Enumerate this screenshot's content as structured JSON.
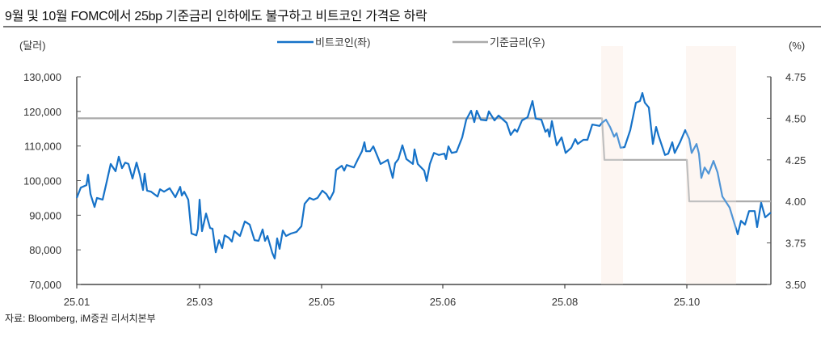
{
  "title": "9월 및 10월 FOMC에서 25bp 기준금리 인하에도 불구하고 비트코인 가격은 하락",
  "source": "자료: Bloomberg, iM증권 리서치본부",
  "colors": {
    "bitcoin": "#1672c8",
    "rate": "#aaaaaa",
    "band": "#fdf3ee",
    "axis": "#555555"
  },
  "chart_data": {
    "type": "line",
    "title": "9월 및 10월 FOMC에서 25bp 기준금리 인하에도 불구하고 비트코인 가격은 하락",
    "left_unit": "(달러)",
    "right_unit": "(%)",
    "left_ylim": [
      70000,
      130000
    ],
    "right_ylim": [
      3.5,
      4.75
    ],
    "left_ticks": [
      "70,000",
      "80,000",
      "90,000",
      "100,000",
      "110,000",
      "120,000",
      "130,000"
    ],
    "left_tick_values": [
      70000,
      80000,
      90000,
      100000,
      110000,
      120000,
      130000
    ],
    "right_ticks": [
      "3.50",
      "3.75",
      "4.00",
      "4.25",
      "4.50",
      "4.75"
    ],
    "right_tick_values": [
      3.5,
      3.75,
      4.0,
      4.25,
      4.5,
      4.75
    ],
    "x_range": [
      0,
      343.6
    ],
    "x_ticks": [
      {
        "label": "25.01",
        "x": 0
      },
      {
        "label": "25.03",
        "x": 60.8
      },
      {
        "label": "25.05",
        "x": 121.2
      },
      {
        "label": "25.06",
        "x": 181.2
      },
      {
        "label": "25.08",
        "x": 241.6
      },
      {
        "label": "25.10",
        "x": 302
      }
    ],
    "fomc_periods": [
      [
        259.6,
        270.4
      ],
      [
        301.6,
        326.4
      ]
    ],
    "legend": {
      "placement": "top-center",
      "items": [
        "비트코인(좌)",
        "기준금리(우)"
      ]
    },
    "series": [
      {
        "name": "비트코인(좌)",
        "axis": "left",
        "points": [
          [
            0,
            95000
          ],
          [
            2,
            98000
          ],
          [
            4.8,
            98700
          ],
          [
            5.6,
            101700
          ],
          [
            6.8,
            96100
          ],
          [
            8.8,
            92400
          ],
          [
            10,
            95000
          ],
          [
            12.8,
            94500
          ],
          [
            14.8,
            99600
          ],
          [
            16.8,
            104800
          ],
          [
            19.2,
            102700
          ],
          [
            20.8,
            106900
          ],
          [
            22.4,
            103600
          ],
          [
            24,
            105200
          ],
          [
            25.6,
            104800
          ],
          [
            27.6,
            100600
          ],
          [
            29.6,
            105200
          ],
          [
            31.2,
            101700
          ],
          [
            32.8,
            97300
          ],
          [
            33.6,
            102000
          ],
          [
            34.8,
            97100
          ],
          [
            36.8,
            96800
          ],
          [
            40,
            95400
          ],
          [
            41.2,
            97500
          ],
          [
            43.2,
            96800
          ],
          [
            46,
            97800
          ],
          [
            48.8,
            95200
          ],
          [
            51.2,
            98200
          ],
          [
            52,
            95700
          ],
          [
            53.2,
            96800
          ],
          [
            55.2,
            94500
          ],
          [
            56.8,
            84700
          ],
          [
            59.2,
            84200
          ],
          [
            60,
            86100
          ],
          [
            60.8,
            94500
          ],
          [
            62,
            85400
          ],
          [
            64,
            90500
          ],
          [
            66,
            86300
          ],
          [
            67.2,
            86100
          ],
          [
            68.8,
            79300
          ],
          [
            70.4,
            82800
          ],
          [
            72,
            80500
          ],
          [
            73.2,
            84200
          ],
          [
            75.2,
            83500
          ],
          [
            76.8,
            82400
          ],
          [
            78,
            85400
          ],
          [
            80.8,
            84000
          ],
          [
            83.2,
            88200
          ],
          [
            85.6,
            87300
          ],
          [
            88,
            82800
          ],
          [
            90,
            82600
          ],
          [
            92,
            85900
          ],
          [
            93.2,
            82600
          ],
          [
            94.4,
            84000
          ],
          [
            96.8,
            79100
          ],
          [
            98,
            77500
          ],
          [
            99.2,
            83300
          ],
          [
            100.4,
            80300
          ],
          [
            102,
            85600
          ],
          [
            103.6,
            84000
          ],
          [
            106,
            84700
          ],
          [
            108.8,
            85200
          ],
          [
            111.2,
            86800
          ],
          [
            112.8,
            93300
          ],
          [
            115.2,
            95000
          ],
          [
            117.2,
            94500
          ],
          [
            119.2,
            95000
          ],
          [
            121.6,
            97100
          ],
          [
            123.6,
            96100
          ],
          [
            125.2,
            94500
          ],
          [
            127.2,
            96800
          ],
          [
            128.4,
            103100
          ],
          [
            131.2,
            104300
          ],
          [
            132.4,
            102900
          ],
          [
            133.6,
            104500
          ],
          [
            137.2,
            103800
          ],
          [
            139.2,
            106200
          ],
          [
            141.2,
            108500
          ],
          [
            142.4,
            111100
          ],
          [
            143.2,
            108500
          ],
          [
            145.2,
            108500
          ],
          [
            146.8,
            109900
          ],
          [
            148.8,
            107100
          ],
          [
            150.4,
            104800
          ],
          [
            154,
            106000
          ],
          [
            156.4,
            100800
          ],
          [
            157.6,
            105000
          ],
          [
            159.2,
            106200
          ],
          [
            161.2,
            110200
          ],
          [
            163.2,
            106200
          ],
          [
            166.4,
            104800
          ],
          [
            167.2,
            109000
          ],
          [
            168.8,
            104800
          ],
          [
            172,
            102900
          ],
          [
            173.2,
            99900
          ],
          [
            174.8,
            104800
          ],
          [
            176.8,
            108000
          ],
          [
            179.2,
            107400
          ],
          [
            182,
            107800
          ],
          [
            182.8,
            106200
          ],
          [
            184,
            109900
          ],
          [
            185.6,
            108000
          ],
          [
            188,
            108300
          ],
          [
            190.8,
            112500
          ],
          [
            192.8,
            117600
          ],
          [
            195.2,
            120200
          ],
          [
            196.8,
            116900
          ],
          [
            198,
            120200
          ],
          [
            200,
            117600
          ],
          [
            202.8,
            117400
          ],
          [
            204,
            120000
          ],
          [
            206.8,
            117400
          ],
          [
            208.8,
            118800
          ],
          [
            212.8,
            116700
          ],
          [
            214.8,
            113200
          ],
          [
            216.8,
            114800
          ],
          [
            218,
            114100
          ],
          [
            220.4,
            117400
          ],
          [
            223.2,
            118300
          ],
          [
            225.6,
            123000
          ],
          [
            227.2,
            117900
          ],
          [
            230,
            117600
          ],
          [
            232,
            114100
          ],
          [
            233.2,
            114800
          ],
          [
            234,
            112700
          ],
          [
            235.2,
            117200
          ],
          [
            237.6,
            110200
          ],
          [
            240,
            112500
          ],
          [
            242,
            108000
          ],
          [
            244.8,
            109500
          ],
          [
            246.8,
            112000
          ],
          [
            248,
            110600
          ],
          [
            250.8,
            111800
          ],
          [
            252.8,
            111800
          ],
          [
            255.2,
            116200
          ],
          [
            258.8,
            115800
          ],
          [
            260,
            116700
          ],
          [
            262,
            117600
          ],
          [
            264,
            115500
          ],
          [
            266,
            112700
          ],
          [
            267.2,
            113700
          ],
          [
            269.2,
            109500
          ],
          [
            271.2,
            109700
          ],
          [
            274,
            114600
          ],
          [
            276.8,
            122500
          ],
          [
            278.8,
            123000
          ],
          [
            280,
            125300
          ],
          [
            281.2,
            122500
          ],
          [
            283.2,
            121100
          ],
          [
            285.2,
            110600
          ],
          [
            286.8,
            115500
          ],
          [
            288,
            113000
          ],
          [
            291.2,
            107400
          ],
          [
            292.8,
            107800
          ],
          [
            294.8,
            111100
          ],
          [
            296,
            108000
          ],
          [
            298.8,
            111300
          ],
          [
            301.2,
            114600
          ],
          [
            303.2,
            112000
          ],
          [
            304.4,
            108000
          ],
          [
            306.8,
            110600
          ],
          [
            308,
            107800
          ],
          [
            309.2,
            100800
          ],
          [
            310.8,
            103800
          ],
          [
            312.8,
            102000
          ],
          [
            315.2,
            105700
          ],
          [
            317.2,
            102400
          ],
          [
            319.6,
            95400
          ],
          [
            321.2,
            94000
          ],
          [
            323.2,
            92200
          ],
          [
            327.2,
            84500
          ],
          [
            328.8,
            88400
          ],
          [
            330.8,
            87300
          ],
          [
            332.8,
            91200
          ],
          [
            335.6,
            91200
          ],
          [
            336.8,
            86600
          ],
          [
            338.8,
            93600
          ],
          [
            340.8,
            89400
          ],
          [
            343.6,
            90800
          ]
        ]
      },
      {
        "name": "기준금리(우)",
        "axis": "right",
        "points": [
          [
            0,
            4.5
          ],
          [
            260,
            4.5
          ],
          [
            261.2,
            4.25
          ],
          [
            302,
            4.25
          ],
          [
            303.2,
            4.0
          ],
          [
            343.6,
            4.0
          ]
        ]
      }
    ]
  }
}
